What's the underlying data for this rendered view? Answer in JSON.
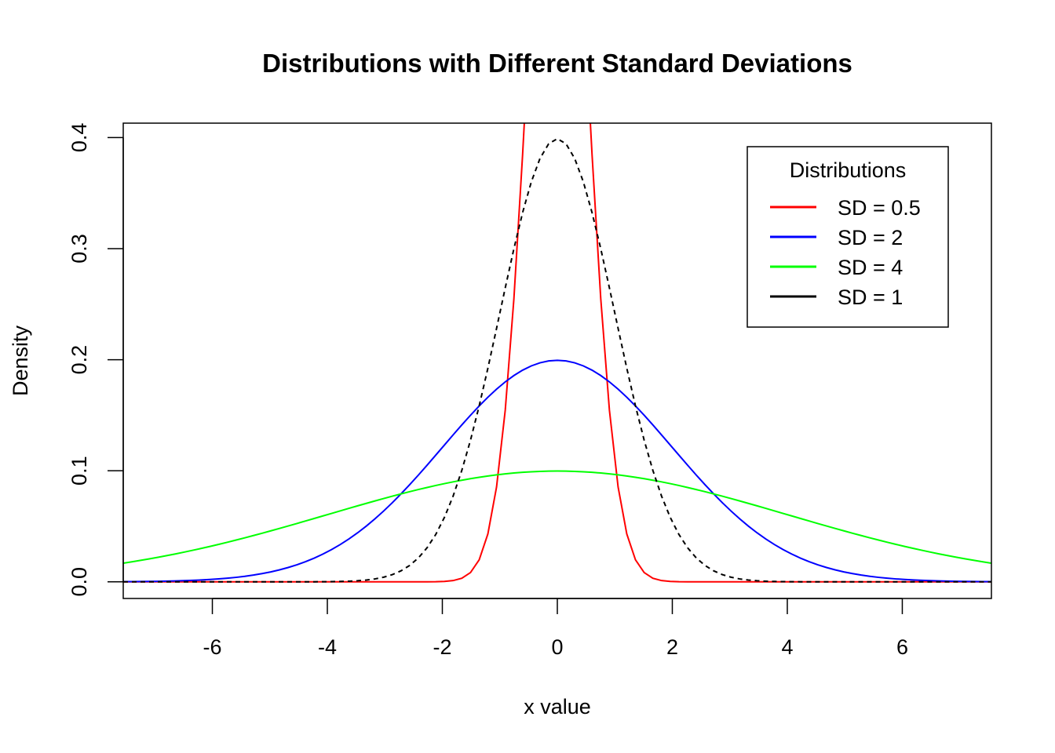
{
  "chart_data": {
    "type": "line",
    "title": "Distributions with Different Standard Deviations",
    "xlabel": "x value",
    "ylabel": "Density",
    "xlim": [
      -7.55,
      7.55
    ],
    "ylim": [
      -0.015,
      0.413
    ],
    "x_ticks": [
      -6,
      -4,
      -2,
      0,
      2,
      4,
      6
    ],
    "x_tick_labels": [
      "-6",
      "-4",
      "-2",
      "0",
      "2",
      "4",
      "6"
    ],
    "y_ticks": [
      0.0,
      0.1,
      0.2,
      0.3,
      0.4
    ],
    "y_tick_labels": [
      "0.0",
      "0.1",
      "0.2",
      "0.3",
      "0.4"
    ],
    "x_range_sampled": [
      -7.55,
      7.55
    ],
    "grid": false,
    "legend": {
      "title": "Distributions",
      "position": "top-right",
      "entries": [
        {
          "label": "SD = 0.5",
          "color": "#ff0000"
        },
        {
          "label": "SD = 2",
          "color": "#0000ff"
        },
        {
          "label": "SD = 4",
          "color": "#00ff00"
        },
        {
          "label": "SD = 1",
          "color": "#000000"
        }
      ]
    },
    "series": [
      {
        "name": "SD = 0.5",
        "mean": 0,
        "sd": 0.5,
        "color": "#ff0000",
        "dash": "solid"
      },
      {
        "name": "SD = 2",
        "mean": 0,
        "sd": 2,
        "color": "#0000ff",
        "dash": "solid"
      },
      {
        "name": "SD = 4",
        "mean": 0,
        "sd": 4,
        "color": "#00ff00",
        "dash": "solid"
      },
      {
        "name": "SD = 1",
        "mean": 0,
        "sd": 1,
        "color": "#000000",
        "dash": "dashed"
      }
    ]
  }
}
